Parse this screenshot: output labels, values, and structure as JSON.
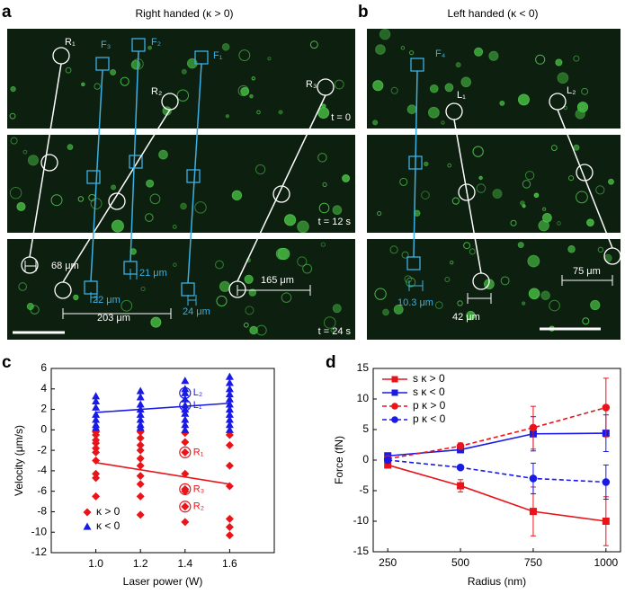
{
  "panel_a": {
    "label": "a",
    "title": "Right handed (κ > 0)",
    "annotations": [
      "R₁",
      "F₃",
      "F₂",
      "F₁",
      "R₂",
      "R₃",
      "t = 0",
      "t = 12 s",
      "t = 24 s",
      "68 μm",
      "22 μm",
      "21 μm",
      "203 μm",
      "24 μm",
      "165 μm"
    ]
  },
  "panel_b": {
    "label": "b",
    "title": "Left handed (κ < 0)",
    "annotations": [
      "F₄",
      "L₁",
      "L₂",
      "10.3 μm",
      "42 μm",
      "75 μm"
    ]
  },
  "chart_data": [
    {
      "type": "scatter",
      "panel_label": "c",
      "xlabel": "Laser power (W)",
      "ylabel": "Velocity (μm/s)",
      "xlim": [
        0.8,
        1.8
      ],
      "xticks": [
        {
          "value": 1.0,
          "label": "1.0"
        },
        1.2,
        1.4,
        1.6
      ],
      "ylim": [
        -12,
        6
      ],
      "yticks": [
        -12,
        -10,
        -8,
        -6,
        -4,
        -2,
        0,
        2,
        4,
        6
      ],
      "legend": "lower left",
      "series": [
        {
          "name": "κ > 0",
          "color": "#e8141a",
          "marker": "diamond",
          "x": [
            1.0,
            1.0,
            1.0,
            1.0,
            1.0,
            1.0,
            1.0,
            1.0,
            1.0,
            1.0,
            1.2,
            1.2,
            1.2,
            1.2,
            1.2,
            1.2,
            1.2,
            1.2,
            1.2,
            1.2,
            1.4,
            1.4,
            1.4,
            1.4,
            1.4,
            1.4,
            1.4,
            1.4,
            1.6,
            1.6,
            1.6,
            1.6,
            1.6,
            1.6,
            1.6
          ],
          "values": [
            -0.2,
            -0.5,
            -1.0,
            -1.3,
            -1.8,
            -2.2,
            -3.0,
            -4.3,
            -4.7,
            -6.5,
            -0.2,
            -0.8,
            -1.5,
            -2.0,
            -2.8,
            -3.5,
            -4.5,
            -5.3,
            -6.5,
            -8.3,
            -0.3,
            -1.2,
            -2.2,
            -4.3,
            -5.8,
            -6.0,
            -7.5,
            -9.0,
            -0.5,
            -1.5,
            -3.5,
            -5.5,
            -8.7,
            -9.5,
            -10.3
          ],
          "fit": {
            "x": [
              1.0,
              1.6
            ],
            "values": [
              -3.2,
              -5.3
            ]
          }
        },
        {
          "name": "κ < 0",
          "color": "#1a1ae6",
          "marker": "triangle",
          "x": [
            1.0,
            1.0,
            1.0,
            1.0,
            1.0,
            1.0,
            1.0,
            1.2,
            1.2,
            1.2,
            1.2,
            1.2,
            1.2,
            1.2,
            1.2,
            1.4,
            1.4,
            1.4,
            1.4,
            1.4,
            1.4,
            1.4,
            1.4,
            1.4,
            1.4,
            1.6,
            1.6,
            1.6,
            1.6,
            1.6,
            1.6,
            1.6,
            1.6,
            1.6,
            1.6,
            1.6
          ],
          "values": [
            3.3,
            2.8,
            2.2,
            1.5,
            1.0,
            0.5,
            0.2,
            3.8,
            3.2,
            2.5,
            2.0,
            1.5,
            1.0,
            0.5,
            0.2,
            4.8,
            4.0,
            3.6,
            3.0,
            2.4,
            2.0,
            1.6,
            1.0,
            0.5,
            0.0,
            5.2,
            4.6,
            4.0,
            3.5,
            3.0,
            2.5,
            2.0,
            1.5,
            1.0,
            0.5,
            0.0
          ],
          "fit": {
            "x": [
              1.0,
              1.6
            ],
            "values": [
              1.7,
              2.6
            ]
          }
        }
      ],
      "point_labels": [
        {
          "text": "L₂",
          "x": 1.4,
          "y": 3.6,
          "color": "#1a1ae6"
        },
        {
          "text": "L₁",
          "x": 1.4,
          "y": 2.4,
          "color": "#1a1ae6"
        },
        {
          "text": "R₁",
          "x": 1.4,
          "y": -2.2,
          "color": "#e8141a"
        },
        {
          "text": "R₃",
          "x": 1.4,
          "y": -5.8,
          "color": "#e8141a"
        },
        {
          "text": "R₂",
          "x": 1.4,
          "y": -7.5,
          "color": "#e8141a"
        }
      ]
    },
    {
      "type": "line",
      "panel_label": "d",
      "xlabel": "Radius (nm)",
      "ylabel": "Force (fN)",
      "x": [
        250,
        500,
        750,
        1000
      ],
      "xlim": [
        200,
        1050
      ],
      "xticks": [
        250,
        500,
        750,
        1000
      ],
      "ylim": [
        -15,
        15
      ],
      "yticks": [
        -15,
        -10,
        -5,
        0,
        5,
        10,
        15
      ],
      "legend": "upper left",
      "series": [
        {
          "name": "s κ > 0",
          "color": "#e8141a",
          "dashed": false,
          "marker": "square",
          "values": [
            -0.8,
            -4.2,
            -8.4,
            -10.0
          ],
          "errors": [
            0.5,
            1.0,
            4.0,
            4.0
          ]
        },
        {
          "name": "s κ < 0",
          "color": "#1a1ae6",
          "dashed": false,
          "marker": "square",
          "values": [
            0.7,
            1.7,
            4.3,
            4.4
          ],
          "errors": [
            0.3,
            0.5,
            2.8,
            3.0
          ]
        },
        {
          "name": "p κ > 0",
          "color": "#e8141a",
          "dashed": true,
          "marker": "circle",
          "values": [
            0.2,
            2.3,
            5.3,
            8.6
          ],
          "errors": [
            0.3,
            0.5,
            3.5,
            4.8
          ]
        },
        {
          "name": "p κ < 0",
          "color": "#1a1ae6",
          "dashed": true,
          "marker": "circle",
          "values": [
            0.0,
            -1.2,
            -3.0,
            -3.6
          ],
          "errors": [
            0.2,
            0.3,
            2.5,
            2.8
          ]
        }
      ]
    }
  ]
}
